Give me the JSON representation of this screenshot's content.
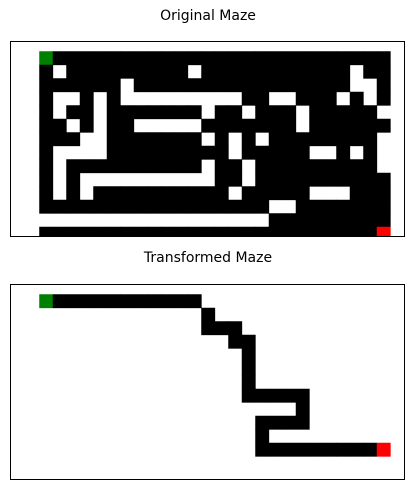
{
  "panels": [
    {
      "title": "Original Maze",
      "rows": [
        "...........................",
        ".GXXXXXXXXXXXXXXXXXXXXXXXXX",
        ".X.XXXXXXXXX.XXXXXXXXXXX.XX",
        ".XXXXXX.XXXXXXXXXXXXXXXX..X",
        ".X..X.X.........XX..XXX.X.X",
        ".X.XX.XXXXXXX.XX.XXX.XXXXX.",
        ".XX.X.XX.....XXXXXXX.XXXXXX",
        ".XXX..XXXXXXX.X.X.XXXXXXXX.",
        ".X....XXXXXXXXX.XXXXX..X.X.",
        ".X.XXXXXXXXXX.XX.XXXXXXXXX.",
        ".X.X..........XX.XXXXXXXXXX",
        ".X.X.XXXXXXXXXX.XXXXX...XXX",
        ".XXXXXXXXXXXXXXXXX..XXXXXXX",
        "..................XXXXXXXXX",
        ".XXXXXXXXXXXXXXXXXXXXXXXXXR"
      ]
    },
    {
      "title": "Transformed Maze",
      "rows": [
        "...........................",
        ".GXXXXXXXXXXX..............",
        ".............X.............",
        ".............XXX...........",
        "...............XX..........",
        "................X..........",
        "................X..........",
        "................X..........",
        "................XXXXX......",
        "....................X......",
        ".................XXXX......",
        ".................X.........",
        ".................XXXXXXXXXR",
        "...........................",
        "..........................."
      ]
    }
  ],
  "colors": {
    "wall": "#000000",
    "path": "#ffffff",
    "start": "#008000",
    "end": "#ff0000"
  }
}
